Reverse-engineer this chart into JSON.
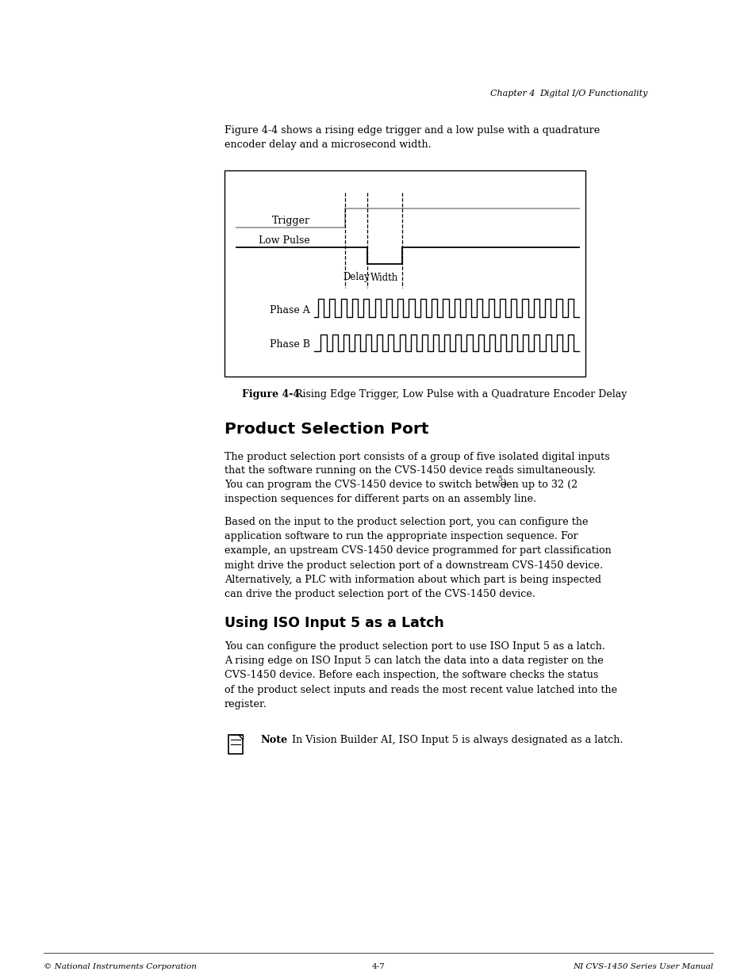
{
  "bg_color": "#ffffff",
  "page_width": 9.54,
  "page_height": 12.35,
  "header_text_ch": "Chapter 4",
  "header_text_sec": "Digital I/O Functionality",
  "intro_text": "Figure 4-4 shows a rising edge trigger and a low pulse with a quadrature\nencoder delay and a microsecond width.",
  "section1_title": "Product Selection Port",
  "section1_para1_line1": "The product selection port consists of a group of five isolated digital inputs",
  "section1_para1_line2": "that the software running on the CVS-1450 device reads simultaneously.",
  "section1_para1_line3": "You can program the CVS-1450 device to switch between up to 32 (2",
  "section1_para1_sup": "5",
  "section1_para1_line3b": ")",
  "section1_para1_line4": "inspection sequences for different parts on an assembly line.",
  "section1_para2": "Based on the input to the product selection port, you can configure the\napplication software to run the appropriate inspection sequence. For\nexample, an upstream CVS-1450 device programmed for part classification\nmight drive the product selection port of a downstream CVS-1450 device.\nAlternatively, a PLC with information about which part is being inspected\ncan drive the product selection port of the CVS-1450 device.",
  "section2_title": "Using ISO Input 5 as a Latch",
  "section2_para1": "You can configure the product selection port to use ISO Input 5 as a latch.\nA rising edge on ISO Input 5 can latch the data into a data register on the\nCVS-1450 device. Before each inspection, the software checks the status\nof the product select inputs and reads the most recent value latched into the\nregister.",
  "note_label": "Note",
  "note_text": "In Vision Builder AI, ISO Input 5 is always designated as a latch.",
  "footer_left": "© National Instruments Corporation",
  "footer_center": "4-7",
  "footer_right": "NI CVS-1450 Series User Manual",
  "fig_caption_bold": "Figure 4-4.",
  "fig_caption_rest": "  Rising Edge Trigger, Low Pulse with a Quadrature Encoder Delay"
}
